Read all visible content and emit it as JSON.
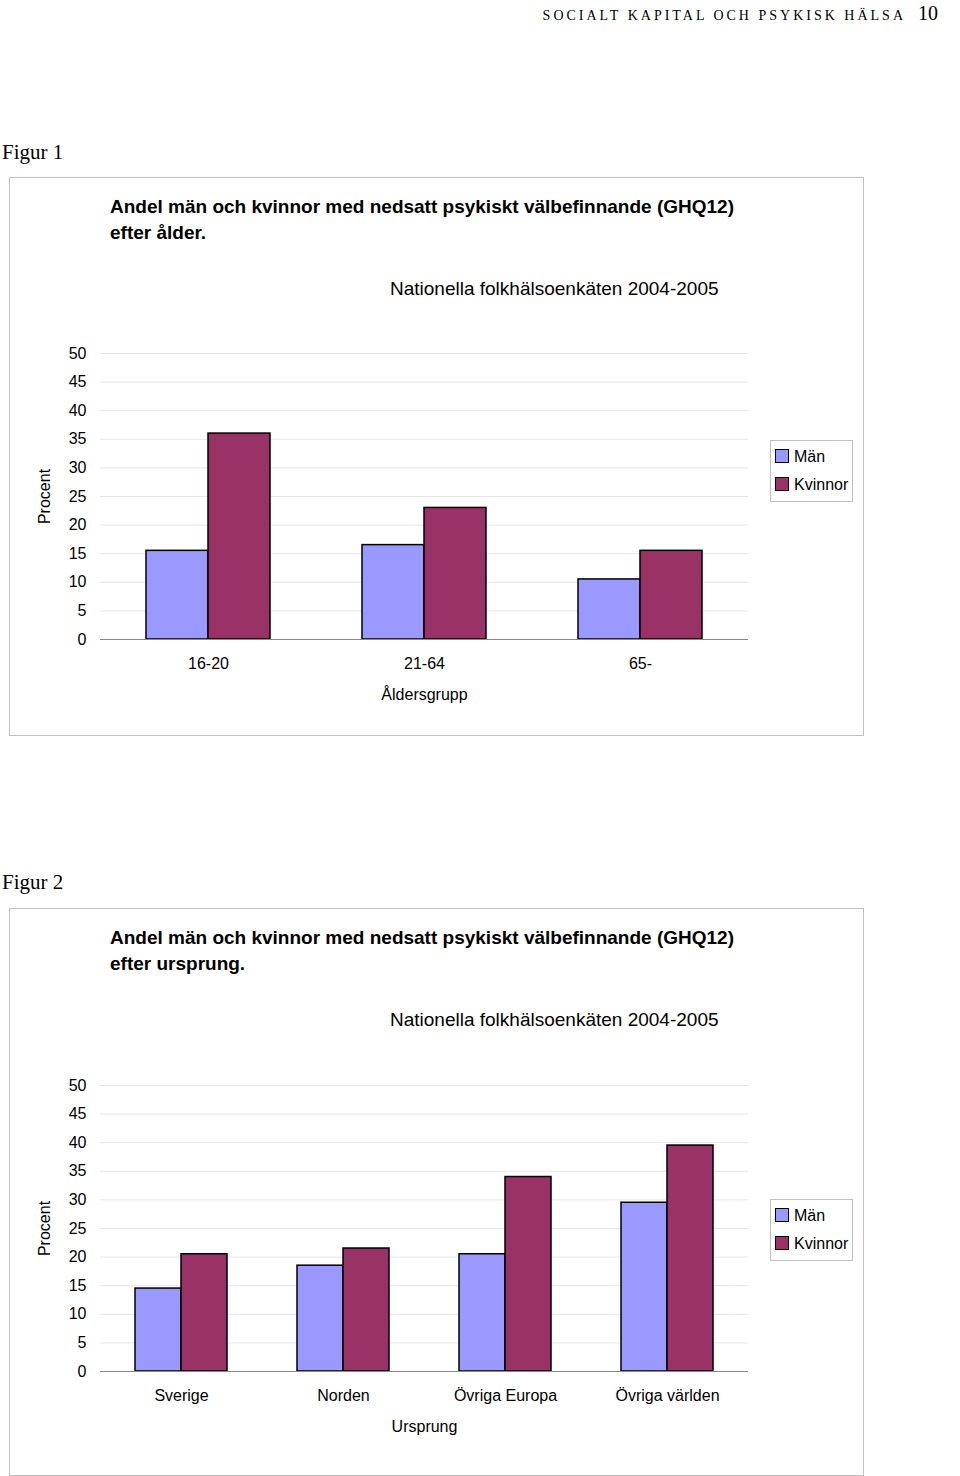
{
  "header": {
    "title": "SOCIALT KAPITAL OCH PSYKISK HÄLSA",
    "page": 10
  },
  "chart_data": [
    {
      "type": "bar",
      "figure_label": "Figur 1",
      "title": "Andel män och kvinnor med nedsatt psykiskt välbefinnande (GHQ12) efter ålder.",
      "subtitle": "Nationella folkhälsoenkäten 2004-2005",
      "x_label": "Åldersgrupp",
      "y_label": "Procent",
      "categories": [
        "16-20",
        "21-64",
        "65-"
      ],
      "series": [
        {
          "name": "Män",
          "color": "#9999ff",
          "values": [
            15.5,
            16.5,
            10.5
          ]
        },
        {
          "name": "Kvinnor",
          "color": "#993366",
          "values": [
            36,
            23,
            15.5
          ]
        }
      ],
      "ylim": [
        0,
        50
      ],
      "yticks": [
        0,
        5,
        10,
        15,
        20,
        25,
        30,
        35,
        40,
        45,
        50
      ],
      "grid": true,
      "legend": "right"
    },
    {
      "type": "bar",
      "figure_label": "Figur 2",
      "title": "Andel män och kvinnor med nedsatt psykiskt välbefinnande (GHQ12) efter ursprung.",
      "subtitle": "Nationella folkhälsoenkäten 2004-2005",
      "x_label": "Ursprung",
      "y_label": "Procent",
      "categories": [
        "Sverige",
        "Norden",
        "Övriga Europa",
        "Övriga världen"
      ],
      "series": [
        {
          "name": "Män",
          "color": "#9999ff",
          "values": [
            14.5,
            18.5,
            20.5,
            29.5
          ]
        },
        {
          "name": "Kvinnor",
          "color": "#993366",
          "values": [
            20.5,
            21.5,
            34,
            39.5
          ]
        }
      ],
      "ylim": [
        0,
        50
      ],
      "yticks": [
        0,
        5,
        10,
        15,
        20,
        25,
        30,
        35,
        40,
        45,
        50
      ],
      "grid": true,
      "legend": "right"
    }
  ]
}
